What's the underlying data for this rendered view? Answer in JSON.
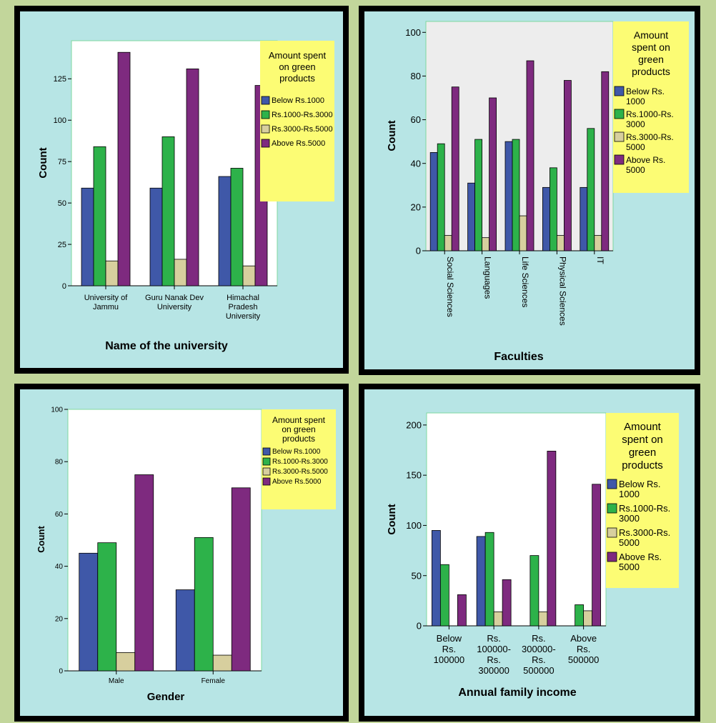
{
  "colors": {
    "page": "#c2d69b",
    "panel": "#b7e5e5",
    "legend_bg": "#fcfc74",
    "series": [
      "#3f58a8",
      "#2db24a",
      "#d7cf9e",
      "#7e2a7f"
    ]
  },
  "chart_data": [
    {
      "type": "bar",
      "title": "",
      "xlabel": "Name of the university",
      "ylabel": "Count",
      "categories": [
        "University of Jammu",
        "Guru Nanak Dev University",
        "Himachal Pradesh University"
      ],
      "category_lines": [
        [
          "University of",
          "Jammu"
        ],
        [
          "Guru Nanak Dev",
          "University"
        ],
        [
          "Himachal",
          "Pradesh",
          "University"
        ]
      ],
      "ylim": [
        0,
        148
      ],
      "yticks": [
        0,
        25,
        50,
        75,
        100,
        125
      ],
      "legend": {
        "title_lines": [
          "Amount spent",
          "on green",
          "products"
        ],
        "entries": [
          "Below Rs.1000",
          "Rs.1000-Rs.3000",
          "Rs.3000-Rs.5000",
          "Above Rs.5000"
        ],
        "placement": "right"
      },
      "series": [
        {
          "name": "Below Rs.1000",
          "values": [
            59,
            59,
            66
          ]
        },
        {
          "name": "Rs.1000-Rs.3000",
          "values": [
            84,
            90,
            71
          ]
        },
        {
          "name": "Rs.3000-Rs.5000",
          "values": [
            15,
            16,
            12
          ]
        },
        {
          "name": "Above Rs.5000",
          "values": [
            141,
            131,
            121
          ]
        }
      ],
      "grid": false
    },
    {
      "type": "bar",
      "title": "",
      "xlabel": "Faculties",
      "ylabel": "Count",
      "categories": [
        "Social Sciences",
        "Languages",
        "Life Sciences",
        "Physical Sciences",
        "IT"
      ],
      "ylim": [
        0,
        105
      ],
      "yticks": [
        0,
        20,
        40,
        60,
        80,
        100
      ],
      "legend": {
        "title_lines": [
          "Amount",
          "spent on",
          "green",
          "products"
        ],
        "entries": [
          "Below Rs. 1000",
          "Rs.1000-Rs. 3000",
          "Rs.3000-Rs. 5000",
          "Above Rs. 5000"
        ],
        "entry_lines": [
          [
            "Below Rs.",
            "1000"
          ],
          [
            "Rs.1000-Rs.",
            "3000"
          ],
          [
            "Rs.3000-Rs.",
            "5000"
          ],
          [
            "Above Rs.",
            "5000"
          ]
        ],
        "placement": "right"
      },
      "series": [
        {
          "name": "Below Rs. 1000",
          "values": [
            45,
            31,
            50,
            29,
            29
          ]
        },
        {
          "name": "Rs.1000-Rs. 3000",
          "values": [
            49,
            51,
            51,
            38,
            56
          ]
        },
        {
          "name": "Rs.3000-Rs. 5000",
          "values": [
            7,
            6,
            16,
            7,
            7
          ]
        },
        {
          "name": "Above Rs. 5000",
          "values": [
            75,
            70,
            87,
            78,
            82
          ]
        }
      ],
      "grid": false
    },
    {
      "type": "bar",
      "title": "",
      "xlabel": "Gender",
      "ylabel": "Count",
      "categories": [
        "Male",
        "Female"
      ],
      "ylim": [
        0,
        100
      ],
      "yticks": [
        0,
        20,
        40,
        60,
        80,
        100
      ],
      "legend": {
        "title_lines": [
          "Amount spent",
          "on green",
          "products"
        ],
        "entries": [
          "Below Rs.1000",
          "Rs.1000-Rs.3000",
          "Rs.3000-Rs.5000",
          "Above Rs.5000"
        ],
        "placement": "right"
      },
      "series": [
        {
          "name": "Below Rs.1000",
          "values": [
            45,
            31
          ]
        },
        {
          "name": "Rs.1000-Rs.3000",
          "values": [
            49,
            51
          ]
        },
        {
          "name": "Rs.3000-Rs.5000",
          "values": [
            7,
            6
          ]
        },
        {
          "name": "Above Rs.5000",
          "values": [
            75,
            70
          ]
        }
      ],
      "grid": false
    },
    {
      "type": "bar",
      "title": "",
      "xlabel": "Annual family income",
      "ylabel": "Count",
      "categories": [
        "Below Rs. 100000",
        "Rs. 100000-Rs. 300000",
        "Rs. 300000-Rs. 500000",
        "Above Rs. 500000"
      ],
      "category_lines": [
        [
          "Below",
          "Rs.",
          "100000"
        ],
        [
          "Rs.",
          "100000-",
          "Rs.",
          "300000"
        ],
        [
          "Rs.",
          "300000-",
          "Rs.",
          "500000"
        ],
        [
          "Above",
          "Rs.",
          "500000"
        ]
      ],
      "ylim": [
        0,
        212
      ],
      "yticks": [
        0,
        50,
        100,
        150,
        200
      ],
      "legend": {
        "title_lines": [
          "Amount",
          "spent on",
          "green",
          "products"
        ],
        "entries": [
          "Below Rs. 1000",
          "Rs.1000-Rs. 3000",
          "Rs.3000-Rs. 5000",
          "Above Rs. 5000"
        ],
        "entry_lines": [
          [
            "Below Rs.",
            "1000"
          ],
          [
            "Rs.1000-Rs.",
            "3000"
          ],
          [
            "Rs.3000-Rs.",
            "5000"
          ],
          [
            "Above Rs.",
            "5000"
          ]
        ],
        "placement": "right"
      },
      "series": [
        {
          "name": "Below Rs. 1000",
          "values": [
            95,
            89,
            0,
            0
          ]
        },
        {
          "name": "Rs.1000-Rs. 3000",
          "values": [
            61,
            93,
            70,
            21
          ]
        },
        {
          "name": "Rs.3000-Rs. 5000",
          "values": [
            0,
            14,
            14,
            15
          ]
        },
        {
          "name": "Above Rs. 5000",
          "values": [
            31,
            46,
            174,
            141
          ]
        }
      ],
      "grid": false
    }
  ]
}
